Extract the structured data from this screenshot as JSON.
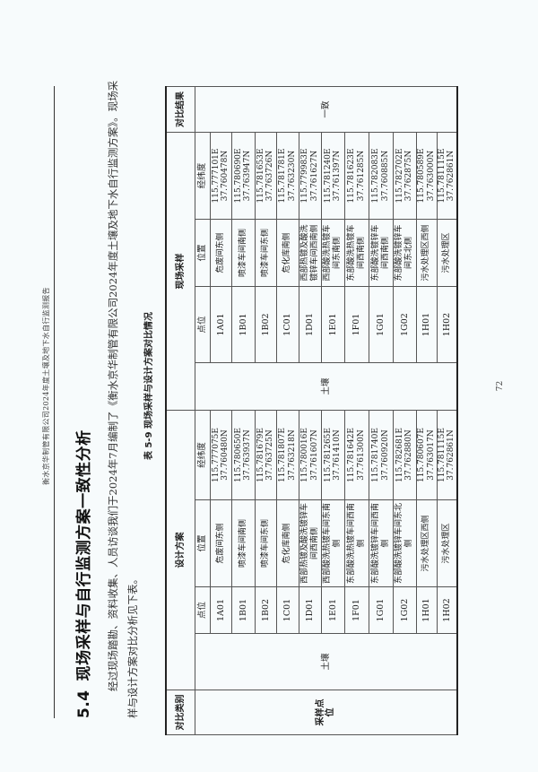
{
  "running_header": "衡水京华制管有限公司2024年度土壤及地下水自行监测报告",
  "heading": {
    "number": "5.4",
    "title": "现场采样与自行监测方案一致性分析"
  },
  "paragraph": "经过现场踏勘、资料收集、人员访谈我们于2024年7月编制了《衡水京华制管有限公司2024年度土壤及地下水自行监测方案》。现场采样与设计方案对比分析见下表。",
  "table_caption": "表 5-9   现场采样与设计方案对比情况",
  "table": {
    "headers": {
      "category": "对比类别",
      "design": "设计方案",
      "site": "现场采样",
      "result": "对比结果",
      "point": "点位",
      "location": "位置",
      "coordinates": "经纬度"
    },
    "row_group_label": "采样点位",
    "medium_design": "土壤",
    "medium_site": "土壤",
    "result_value": "一致",
    "rows": [
      {
        "design": {
          "point": "1A01",
          "location": "危废间东侧",
          "lon": "115.777075E",
          "lat": "37.760480N"
        },
        "site": {
          "point": "1A01",
          "location": "危废间东侧",
          "lon": "115.777101E",
          "lat": "37.760478N"
        }
      },
      {
        "design": {
          "point": "1B01",
          "location": "喷漆车间南侧",
          "lon": "115.780650E",
          "lat": "37.763937N"
        },
        "site": {
          "point": "1B01",
          "location": "喷漆车间南侧",
          "lon": "115.780690E",
          "lat": "37.763947N"
        }
      },
      {
        "design": {
          "point": "1B02",
          "location": "喷漆车间东侧",
          "lon": "115.781679E",
          "lat": "37.763725N"
        },
        "site": {
          "point": "1B02",
          "location": "喷漆车间东侧",
          "lon": "115.781653E",
          "lat": "37.763726N"
        }
      },
      {
        "design": {
          "point": "1C01",
          "location": "危化库南侧",
          "lon": "115.781807E",
          "lat": "37.763218N"
        },
        "site": {
          "point": "1C01",
          "location": "危化库南侧",
          "lon": "115.781781E",
          "lat": "37.763230N"
        }
      },
      {
        "design": {
          "point": "1D01",
          "location": "西部热镀及酸洗镀锌车间西南侧",
          "lon": "115.780016E",
          "lat": "37.761607N"
        },
        "site": {
          "point": "1D01",
          "location": "西部热镀及酸洗镀锌车间西南侧",
          "lon": "115.779983E",
          "lat": "37.761627N"
        }
      },
      {
        "design": {
          "point": "1E01",
          "location": "西部酸洗热镀车间东南侧",
          "lon": "115.781265E",
          "lat": "37.761410N"
        },
        "site": {
          "point": "1E01",
          "location": "西部酸洗热镀车间东南侧",
          "lon": "115.781240E",
          "lat": "37.761397N"
        }
      },
      {
        "design": {
          "point": "1F01",
          "location": "东部酸洗热镀车间西南侧",
          "lon": "115.781642E",
          "lat": "37.761300N"
        },
        "site": {
          "point": "1F01",
          "location": "东部酸洗热镀车间西南侧",
          "lon": "115.781623E",
          "lat": "37.761285N"
        }
      },
      {
        "design": {
          "point": "1G01",
          "location": "东部酸洗镀锌车间西南侧",
          "lon": "115.781740E",
          "lat": "37.760920N"
        },
        "site": {
          "point": "1G01",
          "location": "东部酸洗镀锌车间西南侧",
          "lon": "115.782083E",
          "lat": "37.760885N"
        }
      },
      {
        "design": {
          "point": "1G02",
          "location": "东部酸洗镀锌车间东北侧",
          "lon": "115.782681E",
          "lat": "37.762880N"
        },
        "site": {
          "point": "1G02",
          "location": "东部酸洗镀锌车间东北侧",
          "lon": "115.782702E",
          "lat": "37.762875N"
        }
      },
      {
        "design": {
          "point": "1H01",
          "location": "污水处理区西侧",
          "lon": "115.780607E",
          "lat": "37.763017N"
        },
        "site": {
          "point": "1H01",
          "location": "污水处理区西侧",
          "lon": "115.780589E",
          "lat": "37.763000N"
        }
      },
      {
        "design": {
          "point": "1H02",
          "location": "污水处理区",
          "lon": "115.781115E",
          "lat": "37.762861N"
        },
        "site": {
          "point": "1H02",
          "location": "污水处理区",
          "lon": "115.781115E",
          "lat": "37.762861N"
        }
      }
    ]
  },
  "page_number": "72"
}
